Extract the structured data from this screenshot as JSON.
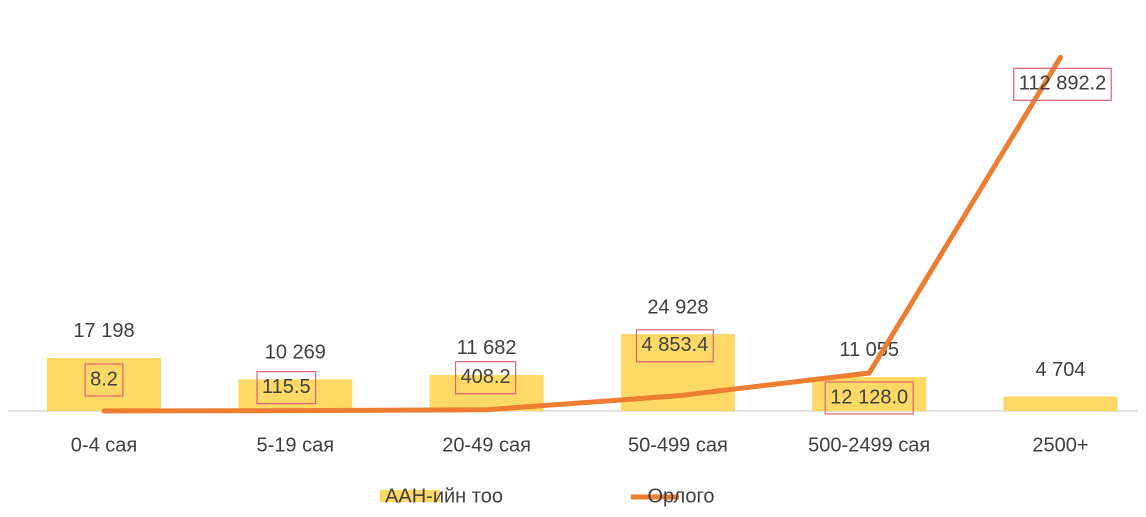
{
  "chart_data": {
    "type": "bar+line",
    "categories": [
      "0-4 сая",
      "5-19 сая",
      "20-49 сая",
      "50-499 сая",
      "500-2499 сая",
      "2500+"
    ],
    "series": [
      {
        "name": "ААН-ийн тоо",
        "type": "bar",
        "color": "#ffd966",
        "values": [
          17198,
          10269,
          11682,
          24928,
          11055,
          4704
        ],
        "value_labels": [
          "17 198",
          "10 269",
          "11 682",
          "24 928",
          "11 055",
          "4 704"
        ]
      },
      {
        "name": "Орлого",
        "type": "line",
        "color": "#ed7d31",
        "axis": "y2",
        "values": [
          8.2,
          115.5,
          408.2,
          4853.4,
          12128.0,
          112892.2
        ],
        "value_labels": [
          "8.2",
          "115.5",
          "408.2",
          "4 853.4",
          "12 128.0",
          "112 892.2"
        ]
      }
    ],
    "ylim": [
      0,
      130000
    ],
    "y2lim": [
      0,
      128000
    ],
    "legend": "bottom"
  }
}
